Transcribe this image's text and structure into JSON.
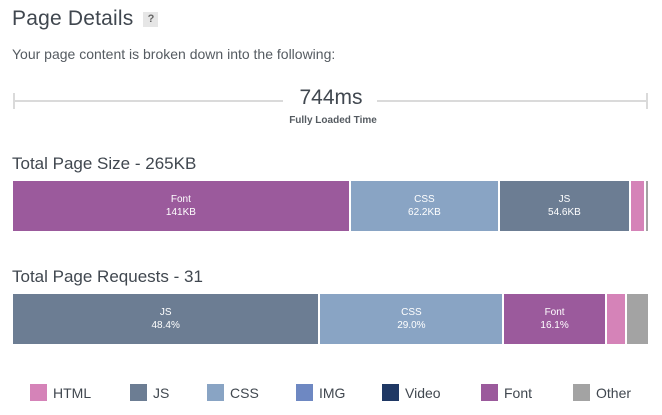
{
  "header": {
    "title": "Page Details",
    "help": "?"
  },
  "subtitle": "Your page content is broken down into the following:",
  "timeline": {
    "value": "744ms",
    "label": "Fully Loaded Time"
  },
  "page_size": {
    "title": "Total Page Size - 265KB",
    "segments": [
      {
        "type": "Font",
        "value": "141KB",
        "share": 0.532,
        "color": "#9b5a9c"
      },
      {
        "type": "CSS",
        "value": "62.2KB",
        "share": 0.235,
        "color": "#89a4c4"
      },
      {
        "type": "JS",
        "value": "54.6KB",
        "share": 0.206,
        "color": "#6c7d93"
      },
      {
        "type": "HTML",
        "value": "",
        "share": 0.024,
        "color": "#d583b8"
      },
      {
        "type": "Other",
        "value": "",
        "share": 0.003,
        "color": "#a3a3a3"
      }
    ]
  },
  "page_requests": {
    "title": "Total Page Requests - 31",
    "segments": [
      {
        "type": "JS",
        "value": "48.4%",
        "share": 0.484,
        "color": "#6c7d93"
      },
      {
        "type": "CSS",
        "value": "29.0%",
        "share": 0.29,
        "color": "#89a4c4"
      },
      {
        "type": "Font",
        "value": "16.1%",
        "share": 0.161,
        "color": "#9b5a9c"
      },
      {
        "type": "HTML",
        "value": "",
        "share": 0.032,
        "color": "#d583b8"
      },
      {
        "type": "Other",
        "value": "",
        "share": 0.033,
        "color": "#a3a3a3"
      }
    ]
  },
  "legend": [
    {
      "label": "HTML",
      "color": "#d583b8"
    },
    {
      "label": "JS",
      "color": "#6c7d93"
    },
    {
      "label": "CSS",
      "color": "#89a4c4"
    },
    {
      "label": "IMG",
      "color": "#6e88c2"
    },
    {
      "label": "Video",
      "color": "#1f3864"
    },
    {
      "label": "Font",
      "color": "#9b5a9c"
    },
    {
      "label": "Other",
      "color": "#a3a3a3"
    }
  ]
}
